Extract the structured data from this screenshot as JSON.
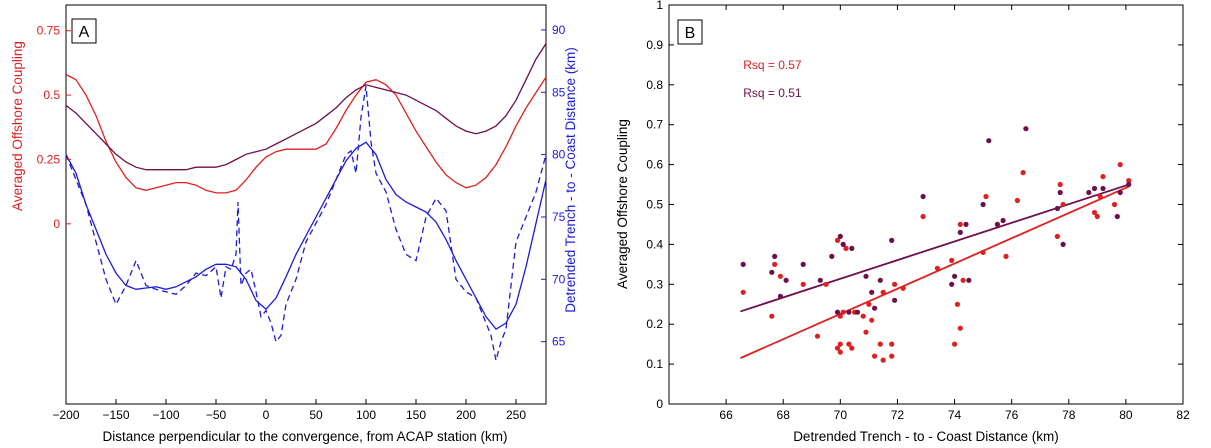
{
  "chart_data": [
    {
      "type": "line",
      "panel_label": "A",
      "xlabel": "Distance perpendicular to the convergence, from ACAP station (km)",
      "ylabel_left": "Averaged Offshore Coupling",
      "ylabel_right": "Detrended Trench - to - Coast Distance (km)",
      "xlim": [
        -200,
        280
      ],
      "ylim_left": [
        -0.7,
        0.85
      ],
      "ylim_right": [
        60,
        92
      ],
      "x_ticks": [
        -200,
        -150,
        -100,
        -50,
        0,
        50,
        100,
        150,
        200,
        250
      ],
      "y_left_ticks": [
        0,
        0.25,
        0.5,
        0.75
      ],
      "y_right_ticks": [
        65,
        70,
        75,
        80,
        85,
        90
      ],
      "colors": {
        "red": "#e02020",
        "purple": "#6e0f4a",
        "blue": "#1c1cdc"
      },
      "series": [
        {
          "axis": "left",
          "color": "red",
          "style": "solid",
          "x": [
            -200,
            -190,
            -180,
            -170,
            -160,
            -150,
            -140,
            -130,
            -120,
            -110,
            -100,
            -90,
            -80,
            -70,
            -60,
            -50,
            -40,
            -30,
            -20,
            -10,
            0,
            10,
            20,
            30,
            40,
            50,
            60,
            70,
            80,
            90,
            100,
            110,
            120,
            130,
            140,
            150,
            160,
            170,
            180,
            190,
            200,
            210,
            220,
            230,
            240,
            250,
            260,
            270,
            280
          ],
          "y": [
            0.58,
            0.56,
            0.5,
            0.42,
            0.32,
            0.24,
            0.18,
            0.14,
            0.13,
            0.14,
            0.15,
            0.16,
            0.16,
            0.15,
            0.13,
            0.12,
            0.12,
            0.13,
            0.17,
            0.22,
            0.26,
            0.28,
            0.29,
            0.29,
            0.29,
            0.29,
            0.31,
            0.37,
            0.44,
            0.5,
            0.55,
            0.56,
            0.54,
            0.5,
            0.43,
            0.36,
            0.3,
            0.24,
            0.19,
            0.16,
            0.14,
            0.15,
            0.18,
            0.23,
            0.3,
            0.38,
            0.45,
            0.51,
            0.57
          ]
        },
        {
          "axis": "left",
          "color": "purple",
          "style": "solid",
          "x": [
            -200,
            -190,
            -180,
            -170,
            -160,
            -150,
            -140,
            -130,
            -120,
            -110,
            -100,
            -90,
            -80,
            -70,
            -60,
            -50,
            -40,
            -30,
            -20,
            -10,
            0,
            10,
            20,
            30,
            40,
            50,
            60,
            70,
            80,
            90,
            100,
            110,
            120,
            130,
            140,
            150,
            160,
            170,
            180,
            190,
            200,
            210,
            220,
            230,
            240,
            250,
            260,
            270,
            280
          ],
          "y": [
            0.46,
            0.43,
            0.39,
            0.35,
            0.31,
            0.27,
            0.24,
            0.22,
            0.21,
            0.21,
            0.21,
            0.21,
            0.21,
            0.22,
            0.22,
            0.22,
            0.23,
            0.25,
            0.27,
            0.28,
            0.29,
            0.31,
            0.33,
            0.35,
            0.37,
            0.39,
            0.42,
            0.45,
            0.49,
            0.52,
            0.54,
            0.53,
            0.52,
            0.51,
            0.5,
            0.48,
            0.46,
            0.44,
            0.41,
            0.38,
            0.36,
            0.35,
            0.36,
            0.38,
            0.42,
            0.48,
            0.56,
            0.64,
            0.7
          ]
        },
        {
          "axis": "right",
          "color": "blue",
          "style": "solid",
          "x": [
            -200,
            -190,
            -180,
            -170,
            -160,
            -150,
            -140,
            -130,
            -120,
            -110,
            -100,
            -90,
            -80,
            -70,
            -60,
            -50,
            -40,
            -30,
            -20,
            -10,
            0,
            10,
            20,
            30,
            40,
            50,
            60,
            70,
            80,
            90,
            100,
            110,
            120,
            130,
            140,
            150,
            160,
            170,
            180,
            190,
            200,
            210,
            220,
            230,
            240,
            250,
            260,
            270,
            280
          ],
          "y": [
            80,
            78.5,
            76,
            74,
            72,
            70.5,
            69.5,
            69.2,
            69.3,
            69.4,
            69.2,
            69.4,
            69.8,
            70.2,
            70.8,
            71.2,
            71.2,
            71,
            70,
            68.3,
            67.6,
            68.5,
            70.2,
            72,
            73.5,
            75,
            76.5,
            78,
            79.5,
            80.5,
            81,
            80,
            78,
            76.8,
            76.2,
            75.8,
            75.4,
            74.6,
            73.2,
            71.5,
            70,
            68.5,
            67,
            66,
            66.5,
            68,
            71,
            74.5,
            78
          ]
        },
        {
          "axis": "right",
          "color": "blue",
          "style": "dashed",
          "x": [
            -200,
            -190,
            -180,
            -170,
            -160,
            -150,
            -140,
            -130,
            -120,
            -110,
            -100,
            -90,
            -80,
            -70,
            -60,
            -50,
            -45,
            -40,
            -35,
            -30,
            -28,
            -25,
            -20,
            -15,
            -10,
            -5,
            0,
            5,
            10,
            15,
            20,
            30,
            40,
            50,
            60,
            70,
            80,
            85,
            90,
            95,
            100,
            105,
            110,
            120,
            130,
            140,
            150,
            160,
            170,
            180,
            190,
            200,
            210,
            220,
            225,
            230,
            235,
            240,
            250,
            260,
            270,
            280
          ],
          "y": [
            80,
            78,
            76,
            73,
            70,
            68,
            69.5,
            71.5,
            69.5,
            69.2,
            69,
            68.8,
            69.5,
            70.5,
            70.3,
            71,
            68.5,
            71,
            70.8,
            72,
            76.2,
            69.5,
            70.5,
            70.8,
            69,
            67,
            67.5,
            66.5,
            65,
            65.5,
            68,
            70,
            73,
            74.5,
            76,
            78,
            80,
            80.3,
            78.5,
            83,
            85.5,
            81,
            78.5,
            77,
            74,
            72,
            71.5,
            75,
            76.5,
            75.5,
            70,
            69,
            68.5,
            66.5,
            65.5,
            63.5,
            65,
            66,
            73,
            75,
            77,
            80
          ]
        }
      ]
    },
    {
      "type": "scatter",
      "panel_label": "B",
      "xlabel": "Detrended Trench - to - Coast Distance (km)",
      "ylabel": "Averaged Offshore Coupling",
      "xlim": [
        64,
        82
      ],
      "ylim": [
        0,
        1
      ],
      "x_ticks": [
        66,
        68,
        70,
        72,
        74,
        76,
        78,
        80,
        82
      ],
      "y_ticks": [
        0,
        0.1,
        0.2,
        0.3,
        0.4,
        0.5,
        0.6,
        0.7,
        0.8,
        0.9,
        1
      ],
      "annotations": [
        {
          "text": "Rsq = 0.57",
          "color": "red",
          "x": 66.6,
          "y": 0.84
        },
        {
          "text": "Rsq = 0.51",
          "color": "purple",
          "x": 66.6,
          "y": 0.77
        }
      ],
      "colors": {
        "red": "#e02020",
        "purple": "#6e0f4a"
      },
      "fit_lines": [
        {
          "color": "red",
          "x": [
            66.5,
            80.1
          ],
          "y": [
            0.115,
            0.545
          ]
        },
        {
          "color": "purple",
          "x": [
            66.5,
            80.1
          ],
          "y": [
            0.232,
            0.55
          ]
        }
      ],
      "series": [
        {
          "color": "red",
          "points": [
            [
              66.6,
              0.28
            ],
            [
              67.6,
              0.22
            ],
            [
              67.7,
              0.35
            ],
            [
              67.9,
              0.32
            ],
            [
              68.7,
              0.3
            ],
            [
              69.2,
              0.17
            ],
            [
              69.5,
              0.3
            ],
            [
              69.9,
              0.41
            ],
            [
              69.9,
              0.14
            ],
            [
              70.0,
              0.13
            ],
            [
              70.0,
              0.15
            ],
            [
              70.0,
              0.22
            ],
            [
              70.1,
              0.23
            ],
            [
              70.2,
              0.39
            ],
            [
              70.3,
              0.15
            ],
            [
              70.4,
              0.14
            ],
            [
              70.5,
              0.23
            ],
            [
              70.8,
              0.22
            ],
            [
              70.9,
              0.18
            ],
            [
              71.0,
              0.25
            ],
            [
              71.1,
              0.21
            ],
            [
              71.2,
              0.12
            ],
            [
              71.4,
              0.15
            ],
            [
              71.5,
              0.11
            ],
            [
              71.5,
              0.28
            ],
            [
              71.8,
              0.12
            ],
            [
              71.8,
              0.15
            ],
            [
              71.9,
              0.3
            ],
            [
              72.2,
              0.29
            ],
            [
              72.9,
              0.47
            ],
            [
              73.4,
              0.34
            ],
            [
              73.9,
              0.36
            ],
            [
              74.0,
              0.15
            ],
            [
              74.1,
              0.25
            ],
            [
              74.2,
              0.19
            ],
            [
              74.2,
              0.45
            ],
            [
              74.3,
              0.31
            ],
            [
              75.0,
              0.38
            ],
            [
              75.1,
              0.52
            ],
            [
              75.8,
              0.37
            ],
            [
              76.2,
              0.51
            ],
            [
              76.4,
              0.58
            ],
            [
              77.6,
              0.42
            ],
            [
              77.7,
              0.55
            ],
            [
              77.8,
              0.5
            ],
            [
              78.9,
              0.48
            ],
            [
              79.0,
              0.47
            ],
            [
              79.1,
              0.52
            ],
            [
              79.2,
              0.57
            ],
            [
              79.6,
              0.5
            ],
            [
              79.8,
              0.6
            ],
            [
              80.1,
              0.56
            ]
          ]
        },
        {
          "color": "purple",
          "points": [
            [
              66.6,
              0.35
            ],
            [
              67.6,
              0.33
            ],
            [
              67.7,
              0.37
            ],
            [
              67.9,
              0.27
            ],
            [
              68.1,
              0.31
            ],
            [
              68.7,
              0.35
            ],
            [
              69.3,
              0.31
            ],
            [
              69.7,
              0.37
            ],
            [
              69.9,
              0.23
            ],
            [
              70.0,
              0.42
            ],
            [
              70.1,
              0.4
            ],
            [
              70.3,
              0.23
            ],
            [
              70.4,
              0.39
            ],
            [
              70.6,
              0.23
            ],
            [
              70.9,
              0.32
            ],
            [
              71.1,
              0.28
            ],
            [
              71.2,
              0.24
            ],
            [
              71.4,
              0.31
            ],
            [
              71.8,
              0.41
            ],
            [
              71.9,
              0.26
            ],
            [
              72.9,
              0.52
            ],
            [
              73.9,
              0.3
            ],
            [
              74.0,
              0.32
            ],
            [
              74.2,
              0.43
            ],
            [
              74.4,
              0.45
            ],
            [
              74.5,
              0.31
            ],
            [
              75.0,
              0.5
            ],
            [
              75.2,
              0.66
            ],
            [
              75.5,
              0.45
            ],
            [
              75.7,
              0.46
            ],
            [
              76.5,
              0.69
            ],
            [
              77.6,
              0.49
            ],
            [
              77.7,
              0.53
            ],
            [
              77.8,
              0.4
            ],
            [
              78.7,
              0.53
            ],
            [
              78.9,
              0.54
            ],
            [
              79.2,
              0.54
            ],
            [
              79.7,
              0.47
            ],
            [
              79.8,
              0.53
            ],
            [
              80.1,
              0.55
            ]
          ]
        }
      ]
    }
  ]
}
